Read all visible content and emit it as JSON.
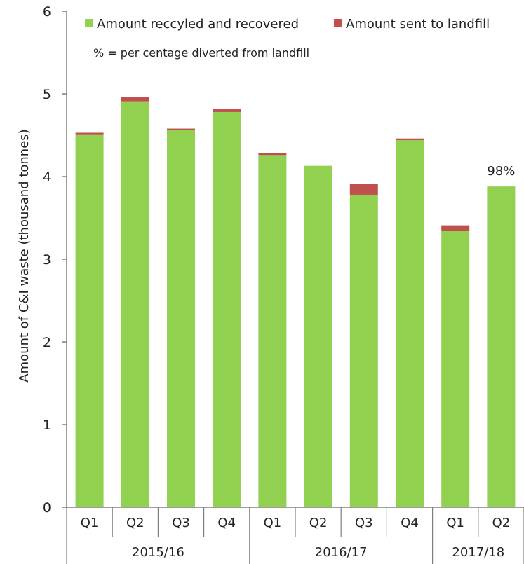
{
  "chart_data": {
    "type": "bar",
    "stacked": true,
    "ylabel": "Amount of C&I waste (thousand tonnes)",
    "ylim": [
      0,
      6
    ],
    "yticks": [
      "0",
      "1",
      "2",
      "3",
      "4",
      "5",
      "6"
    ],
    "grid": false,
    "legend_position": "top",
    "categories": [
      "Q1",
      "Q2",
      "Q3",
      "Q4",
      "Q1",
      "Q2",
      "Q3",
      "Q4",
      "Q1",
      "Q2"
    ],
    "groups": [
      {
        "label": "2015/16",
        "count": 4
      },
      {
        "label": "2016/17",
        "count": 4
      },
      {
        "label": "2017/18",
        "count": 2
      }
    ],
    "series": [
      {
        "name": "Amount reccyled and recovered",
        "color": "#92d050",
        "values": [
          4.51,
          4.91,
          4.56,
          4.78,
          4.26,
          4.13,
          3.78,
          4.44,
          3.34,
          3.88
        ]
      },
      {
        "name": "Amount sent to landfill",
        "color": "#c0504d",
        "values": [
          0.02,
          0.05,
          0.02,
          0.04,
          0.02,
          0.0,
          0.13,
          0.02,
          0.07,
          0.0
        ]
      }
    ],
    "note": "% = per centage diverted from landfill",
    "annotations": [
      {
        "category_index": 9,
        "text": "98%"
      }
    ]
  }
}
